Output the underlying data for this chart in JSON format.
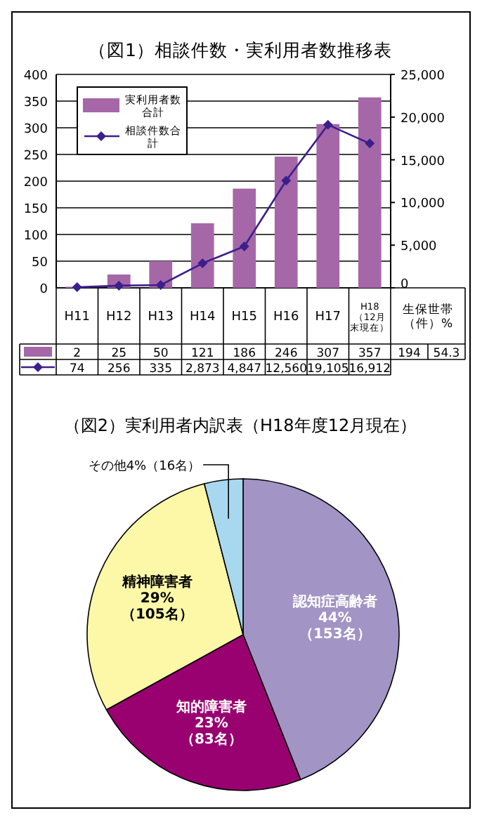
{
  "chart_data": [
    {
      "type": "bar",
      "title": "（図1）相談件数・実利用者数推移表",
      "categories": [
        "H11",
        "H12",
        "H13",
        "H14",
        "H15",
        "H16",
        "H17",
        "H18（12月末現在）"
      ],
      "series": [
        {
          "name": "実利用者数合計",
          "color": "#a667a8",
          "values": [
            2,
            25,
            50,
            121,
            186,
            246,
            307,
            357
          ]
        },
        {
          "name": "相談件数合計",
          "type": "line",
          "axis": "y2",
          "color": "#3c1e8c",
          "marker": "diamond",
          "values": [
            74,
            256,
            335,
            2873,
            4847,
            12560,
            19105,
            16912
          ],
          "value_labels": [
            "74",
            "256",
            "335",
            "2,873",
            "4,847",
            "12,560",
            "19,105",
            "16,912"
          ]
        }
      ],
      "ylim": [
        0,
        400
      ],
      "yticks": [
        0,
        50,
        100,
        150,
        200,
        250,
        300,
        350,
        400
      ],
      "y2lim": [
        0,
        25000
      ],
      "y2ticks": [
        0,
        {
          "value": 5000,
          "label": "5,000"
        },
        {
          "value": 10000,
          "label": "10,000"
        },
        {
          "value": 15000,
          "label": "15,000"
        },
        {
          "value": 20000,
          "label": "20,000"
        },
        {
          "value": 25000,
          "label": "25,000"
        }
      ],
      "grid": "y",
      "legend": "top left",
      "data_labels": true,
      "annotations": [
        "生保世帯（件）%",
        "194",
        "54.3"
      ]
    },
    {
      "type": "pie",
      "title": "（図2）実利用者内訳表（H18年度12月現在）",
      "categories": [
        "認知症高齢者",
        "知的障害者",
        "精神障害者",
        "その他"
      ],
      "values": [
        44,
        23,
        29,
        4
      ],
      "value_labels": [
        "44%（153名）",
        "23%（83名）",
        "29%（105名）",
        "4%（16名）"
      ],
      "colors": [
        "#a294c4",
        "#990070",
        "#fdf8a8",
        "#a8d8f0"
      ]
    }
  ]
}
